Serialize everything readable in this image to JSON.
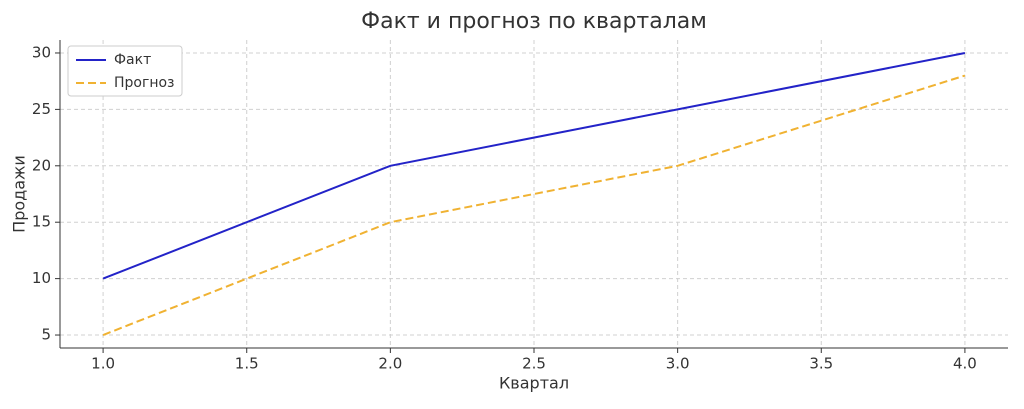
{
  "chart_data": {
    "type": "line",
    "title": "Факт и прогноз по кварталам",
    "x_label": "Квартал",
    "y_label": "Продажи",
    "x": [
      1,
      2,
      3,
      4
    ],
    "series": [
      {
        "name": "Факт",
        "color": "#2323c8",
        "dash": "solid",
        "values": [
          10,
          20,
          25,
          30
        ]
      },
      {
        "name": "Прогноз",
        "color": "#f0b232",
        "dash": "dashed",
        "values": [
          5,
          15,
          20,
          28
        ]
      }
    ],
    "xlim": [
      0.85,
      4.15
    ],
    "ylim": [
      3.85,
      31.15
    ],
    "xticks": [
      {
        "value": 1,
        "label": "1.0"
      },
      {
        "value": 1.5,
        "label": "1.5"
      },
      {
        "value": 2,
        "label": "2.0"
      },
      {
        "value": 2.5,
        "label": "2.5"
      },
      {
        "value": 3,
        "label": "3.0"
      },
      {
        "value": 3.5,
        "label": "3.5"
      },
      {
        "value": 4,
        "label": "4.0"
      }
    ],
    "yticks": [
      5,
      10,
      15,
      20,
      25,
      30
    ],
    "grid": true,
    "legend": "upper-left"
  }
}
